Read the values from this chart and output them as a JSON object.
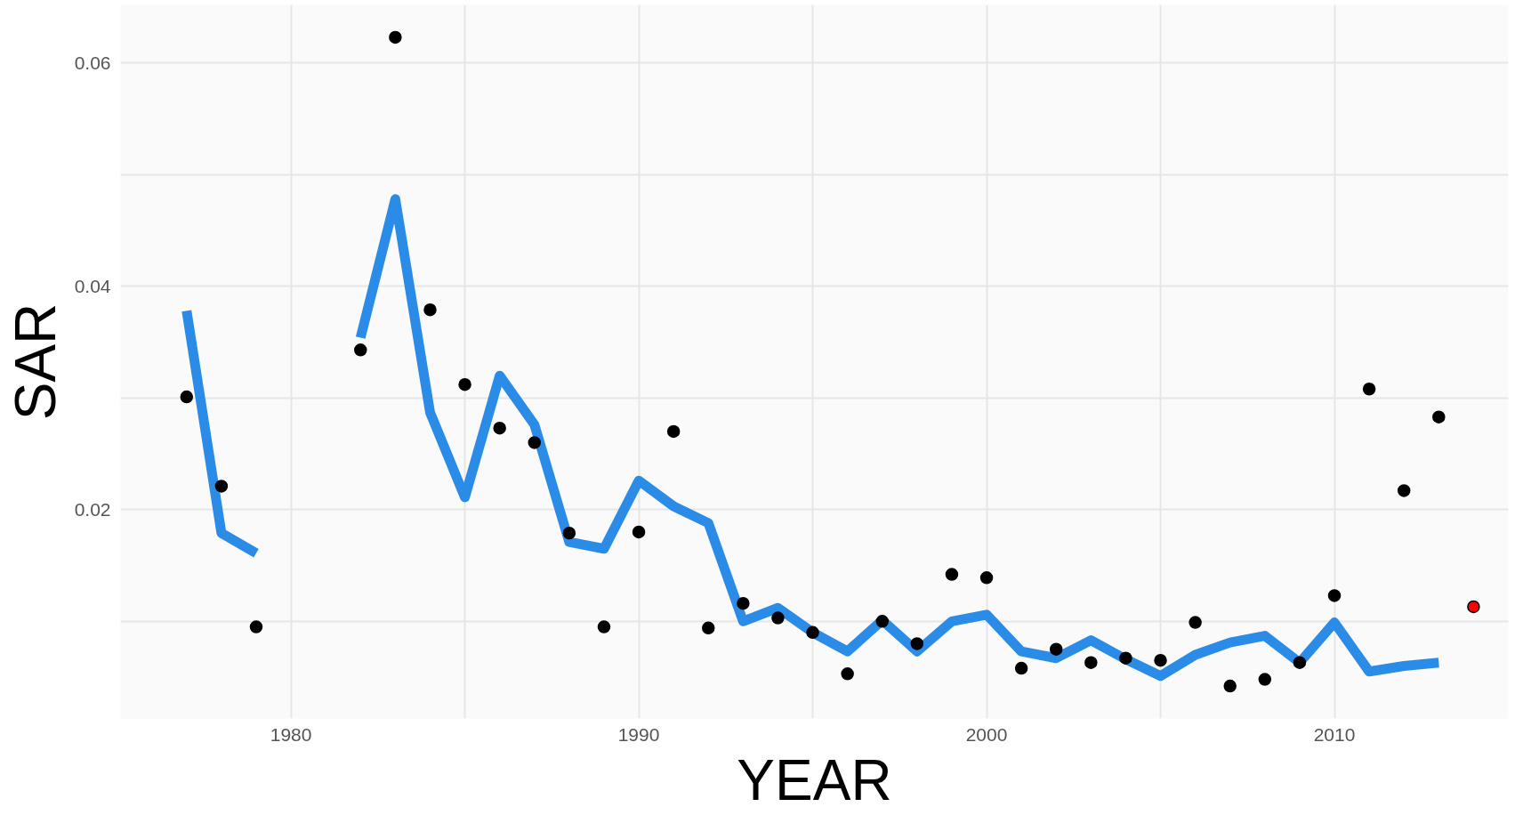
{
  "chart_data": {
    "type": "scatter",
    "xlabel": "YEAR",
    "ylabel": "SAR",
    "xlim": [
      1975.1,
      2015
    ],
    "ylim": [
      0.0013,
      0.0652
    ],
    "xticks": [
      1980,
      {
        "value": 1985,
        "label": null
      },
      1990,
      {
        "value": 1995,
        "label": null
      },
      2000,
      {
        "value": 2005,
        "label": null
      },
      2010
    ],
    "yticks": [
      {
        "value": 0.01,
        "label": null
      },
      0.02,
      {
        "value": 0.03,
        "label": null
      },
      0.04,
      {
        "value": 0.05,
        "label": null
      },
      0.06
    ],
    "grid": true,
    "series": [
      {
        "type": "line",
        "color": "#2b8ce8",
        "x": [
          1977,
          1978,
          1979,
          1980,
          1981,
          1982,
          1983,
          1984,
          1985,
          1986,
          1987,
          1988,
          1989,
          1990,
          1991,
          1992,
          1993,
          1994,
          1995,
          1996,
          1997,
          1998,
          1999,
          2000,
          2001,
          2002,
          2003,
          2004,
          2005,
          2006,
          2007,
          2008,
          2009,
          2010,
          2011,
          2012,
          2013
        ],
        "values": [
          0.0378,
          0.0179,
          0.0161,
          null,
          null,
          0.0354,
          0.0478,
          0.0287,
          0.0211,
          0.032,
          0.0276,
          0.0171,
          0.0165,
          0.0226,
          0.0203,
          0.0188,
          0.01,
          0.0112,
          0.009,
          0.0073,
          0.0101,
          0.0073,
          0.01,
          0.0106,
          0.0073,
          0.0067,
          0.0083,
          0.0066,
          0.0051,
          0.007,
          0.0081,
          0.0087,
          0.0063,
          0.0099,
          0.0055,
          0.006,
          0.0063
        ]
      },
      {
        "color": "#000000",
        "x": [
          1977,
          1978,
          1979,
          1982,
          1983,
          1984,
          1985,
          1986,
          1987,
          1988,
          1989,
          1990,
          1991,
          1992,
          1993,
          1994,
          1995,
          1996,
          1997,
          1998,
          1999,
          2000,
          2001,
          2002,
          2003,
          2004,
          2005,
          2006,
          2007,
          2008,
          2009,
          2010,
          2011,
          2012,
          2013
        ],
        "values": [
          0.0301,
          0.0221,
          0.0095,
          0.0343,
          0.0623,
          0.0379,
          0.0312,
          0.0273,
          0.026,
          0.0179,
          0.0095,
          0.018,
          0.027,
          0.0094,
          0.0116,
          0.0103,
          0.009,
          0.0053,
          0.01,
          0.008,
          0.0142,
          0.0139,
          0.0058,
          0.0075,
          0.0063,
          0.0067,
          0.0065,
          0.0099,
          0.0042,
          0.0048,
          0.0063,
          0.0123,
          0.0308,
          0.0217,
          0.0283
        ]
      },
      {
        "color": "#ff0000",
        "x": [
          2014
        ],
        "values": [
          0.0113
        ]
      }
    ]
  }
}
